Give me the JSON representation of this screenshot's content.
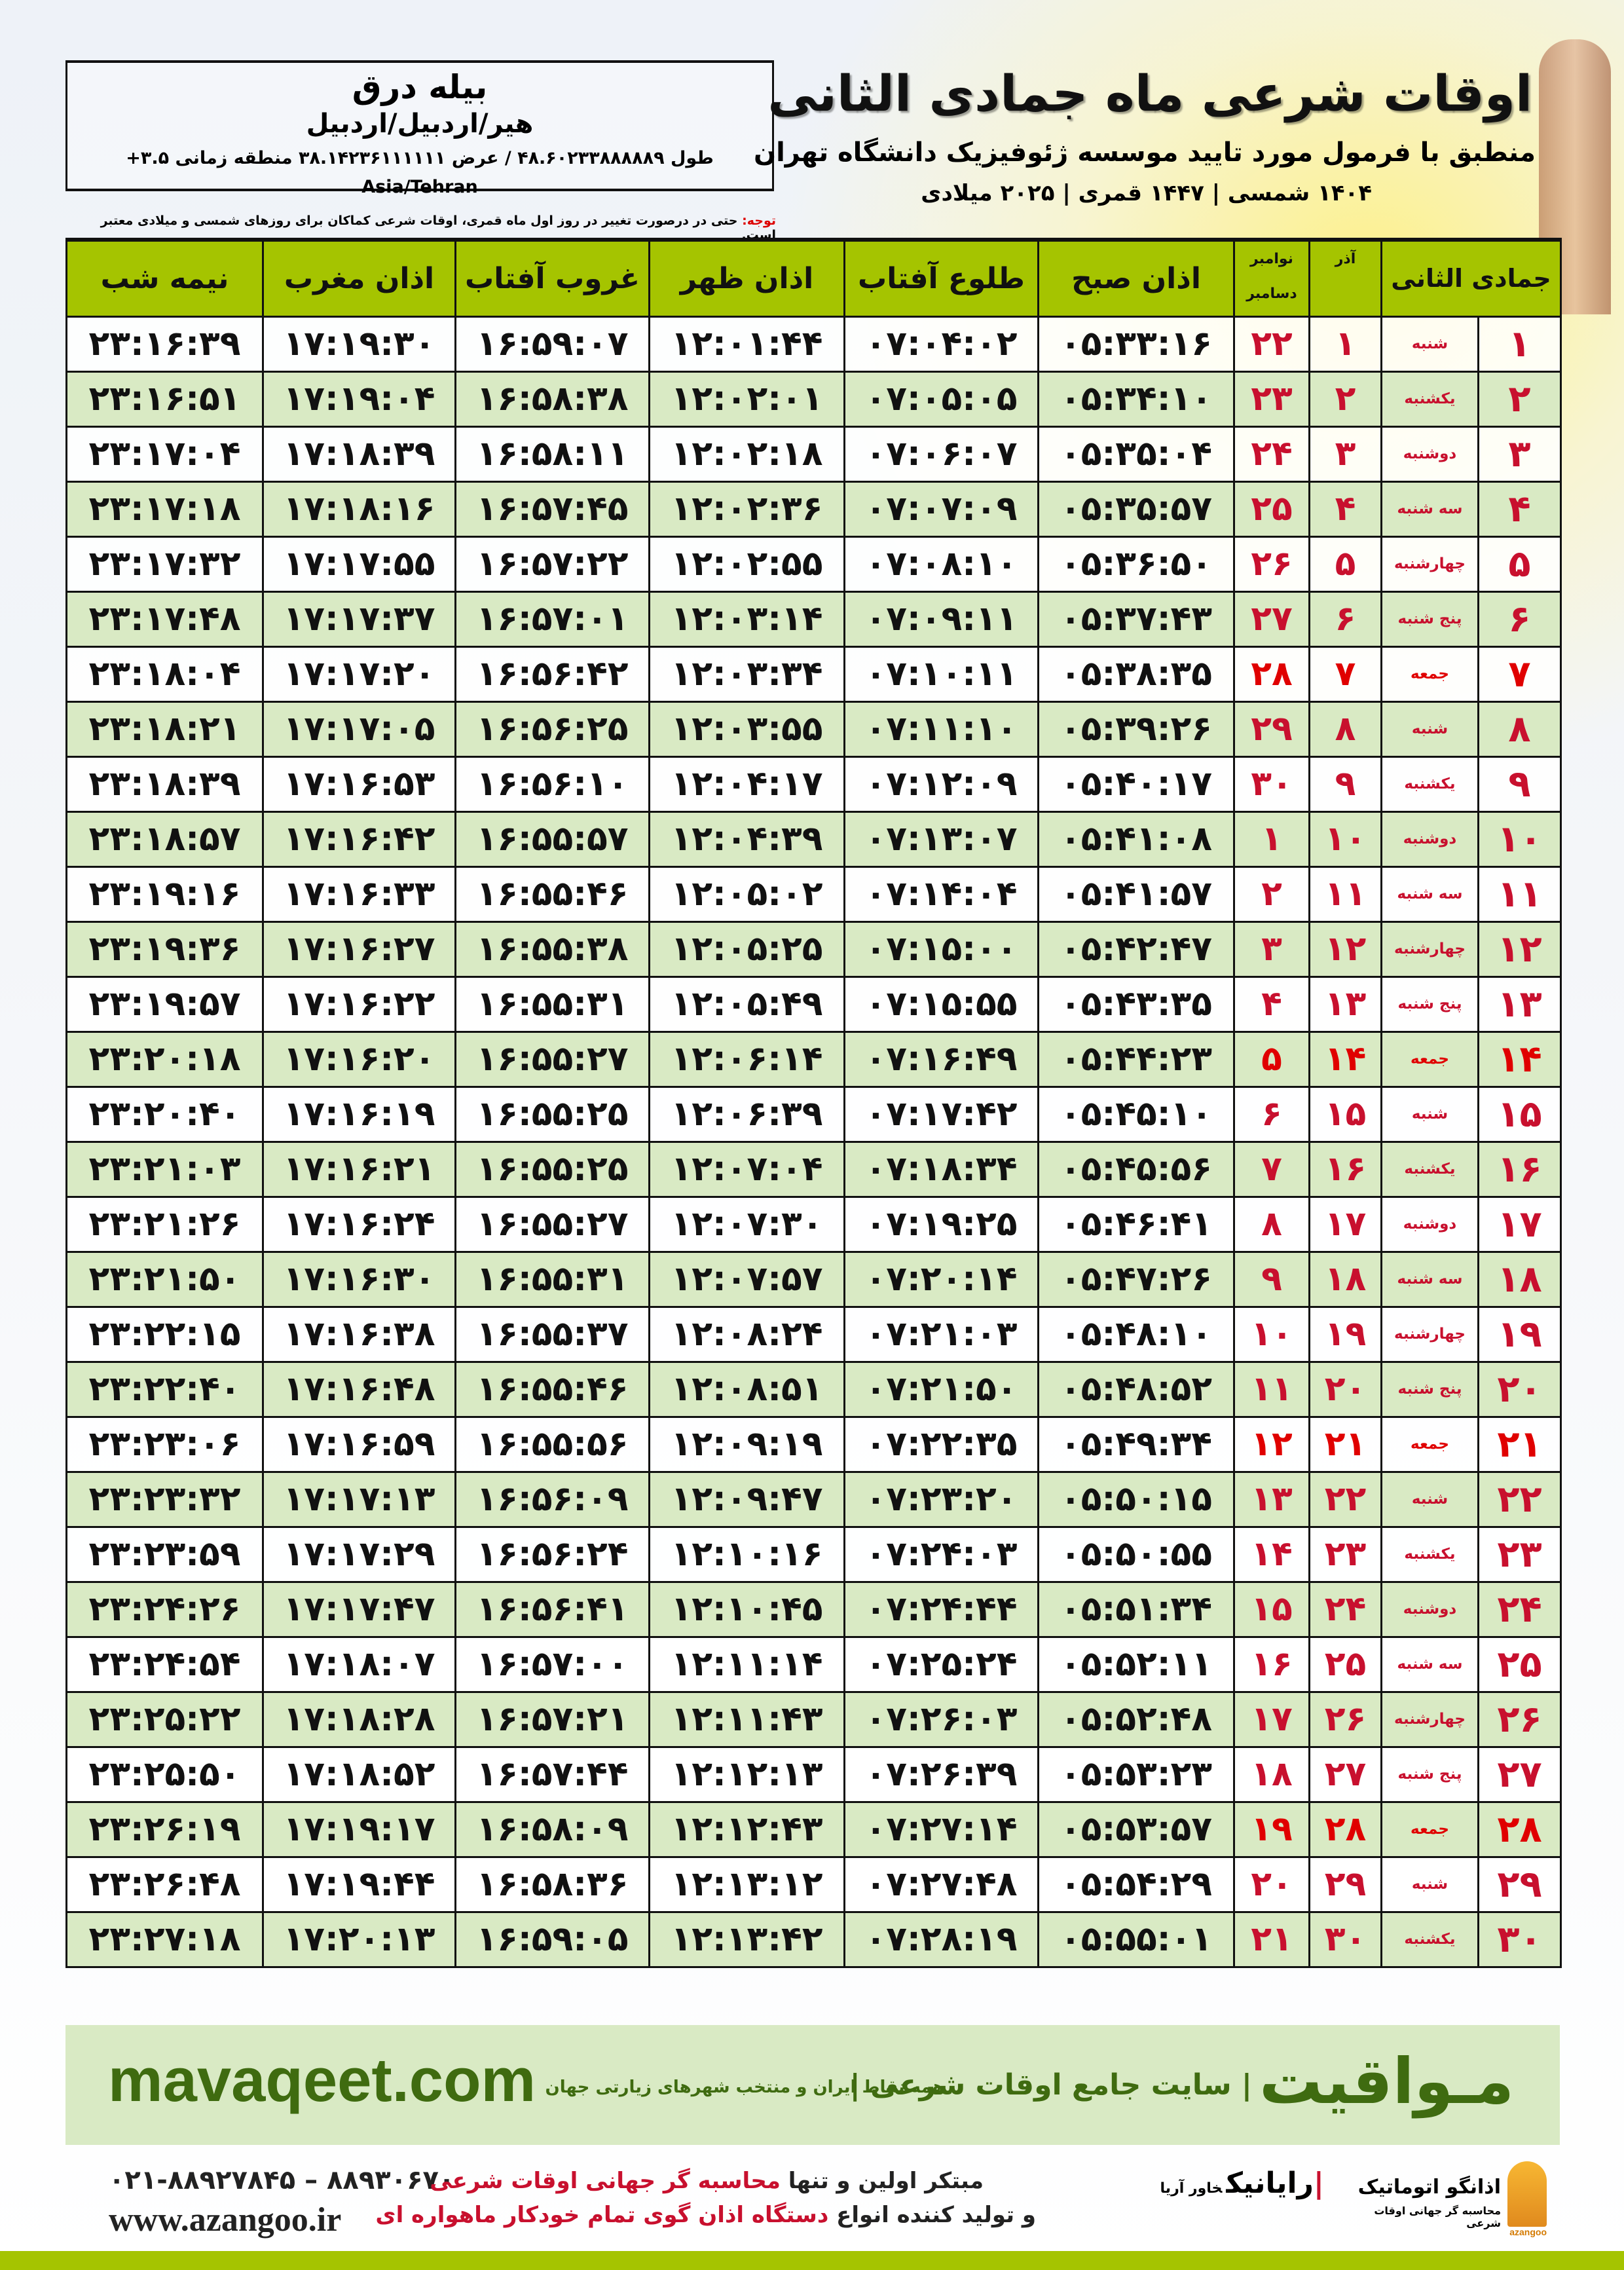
{
  "header": {
    "title": "اوقات شرعی ماه جمادی الثانی",
    "subtitle": "منطبق با فرمول مورد تایید موسسه ژئوفیزیک دانشگاه تهران",
    "years": "۱۴۰۴ شمسی | ۱۴۴۷ قمری | ۲۰۲۵ میلادی"
  },
  "location": {
    "city": "بیله درق",
    "province": "هیر/اردبیل/اردبیل",
    "coords": "طول ۴۸.۶۰۲۳۳۸۸۸۸۸۹ / عرض ۳۸.۱۴۲۳۶۱۱۱۱۱۱ منطقه زمانی ۳.۵+ Asia/Tehran"
  },
  "note": {
    "label": "توجه:",
    "text": " حتی در درصورت تغییر در روز اول ماه قمری، اوقات شرعی کماکان برای روزهای شمسی و میلادی معتبر است."
  },
  "table": {
    "headers": {
      "hijri": "جمادی الثانی",
      "azar": "آذر",
      "greg1": "نوامبر",
      "greg2": "دسامبر",
      "fajr": "اذان صبح",
      "sunrise": "طلوع آفتاب",
      "dhuhr": "اذان ظهر",
      "sunset": "غروب آفتاب",
      "maghrib": "اذان مغرب",
      "midnight": "نیمه شب"
    },
    "friday_color": "#e00000",
    "header_color": "#a5c400",
    "alt_row_color": "#d9eac4",
    "rows": [
      [
        "۱",
        "شنبه",
        "۱",
        "۲۲",
        "۰۵:۳۳:۱۶",
        "۰۷:۰۴:۰۲",
        "۱۲:۰۱:۴۴",
        "۱۶:۵۹:۰۷",
        "۱۷:۱۹:۳۰",
        "۲۳:۱۶:۳۹"
      ],
      [
        "۲",
        "یکشنبه",
        "۲",
        "۲۳",
        "۰۵:۳۴:۱۰",
        "۰۷:۰۵:۰۵",
        "۱۲:۰۲:۰۱",
        "۱۶:۵۸:۳۸",
        "۱۷:۱۹:۰۴",
        "۲۳:۱۶:۵۱"
      ],
      [
        "۳",
        "دوشنبه",
        "۳",
        "۲۴",
        "۰۵:۳۵:۰۴",
        "۰۷:۰۶:۰۷",
        "۱۲:۰۲:۱۸",
        "۱۶:۵۸:۱۱",
        "۱۷:۱۸:۳۹",
        "۲۳:۱۷:۰۴"
      ],
      [
        "۴",
        "سه شنبه",
        "۴",
        "۲۵",
        "۰۵:۳۵:۵۷",
        "۰۷:۰۷:۰۹",
        "۱۲:۰۲:۳۶",
        "۱۶:۵۷:۴۵",
        "۱۷:۱۸:۱۶",
        "۲۳:۱۷:۱۸"
      ],
      [
        "۵",
        "چهارشنبه",
        "۵",
        "۲۶",
        "۰۵:۳۶:۵۰",
        "۰۷:۰۸:۱۰",
        "۱۲:۰۲:۵۵",
        "۱۶:۵۷:۲۲",
        "۱۷:۱۷:۵۵",
        "۲۳:۱۷:۳۲"
      ],
      [
        "۶",
        "پنج شنبه",
        "۶",
        "۲۷",
        "۰۵:۳۷:۴۳",
        "۰۷:۰۹:۱۱",
        "۱۲:۰۳:۱۴",
        "۱۶:۵۷:۰۱",
        "۱۷:۱۷:۳۷",
        "۲۳:۱۷:۴۸"
      ],
      [
        "۷",
        "جمعه",
        "۷",
        "۲۸",
        "۰۵:۳۸:۳۵",
        "۰۷:۱۰:۱۱",
        "۱۲:۰۳:۳۴",
        "۱۶:۵۶:۴۲",
        "۱۷:۱۷:۲۰",
        "۲۳:۱۸:۰۴"
      ],
      [
        "۸",
        "شنبه",
        "۸",
        "۲۹",
        "۰۵:۳۹:۲۶",
        "۰۷:۱۱:۱۰",
        "۱۲:۰۳:۵۵",
        "۱۶:۵۶:۲۵",
        "۱۷:۱۷:۰۵",
        "۲۳:۱۸:۲۱"
      ],
      [
        "۹",
        "یکشنبه",
        "۹",
        "۳۰",
        "۰۵:۴۰:۱۷",
        "۰۷:۱۲:۰۹",
        "۱۲:۰۴:۱۷",
        "۱۶:۵۶:۱۰",
        "۱۷:۱۶:۵۳",
        "۲۳:۱۸:۳۹"
      ],
      [
        "۱۰",
        "دوشنبه",
        "۱۰",
        "۱",
        "۰۵:۴۱:۰۸",
        "۰۷:۱۳:۰۷",
        "۱۲:۰۴:۳۹",
        "۱۶:۵۵:۵۷",
        "۱۷:۱۶:۴۲",
        "۲۳:۱۸:۵۷"
      ],
      [
        "۱۱",
        "سه شنبه",
        "۱۱",
        "۲",
        "۰۵:۴۱:۵۷",
        "۰۷:۱۴:۰۴",
        "۱۲:۰۵:۰۲",
        "۱۶:۵۵:۴۶",
        "۱۷:۱۶:۳۳",
        "۲۳:۱۹:۱۶"
      ],
      [
        "۱۲",
        "چهارشنبه",
        "۱۲",
        "۳",
        "۰۵:۴۲:۴۷",
        "۰۷:۱۵:۰۰",
        "۱۲:۰۵:۲۵",
        "۱۶:۵۵:۳۸",
        "۱۷:۱۶:۲۷",
        "۲۳:۱۹:۳۶"
      ],
      [
        "۱۳",
        "پنج شنبه",
        "۱۳",
        "۴",
        "۰۵:۴۳:۳۵",
        "۰۷:۱۵:۵۵",
        "۱۲:۰۵:۴۹",
        "۱۶:۵۵:۳۱",
        "۱۷:۱۶:۲۲",
        "۲۳:۱۹:۵۷"
      ],
      [
        "۱۴",
        "جمعه",
        "۱۴",
        "۵",
        "۰۵:۴۴:۲۳",
        "۰۷:۱۶:۴۹",
        "۱۲:۰۶:۱۴",
        "۱۶:۵۵:۲۷",
        "۱۷:۱۶:۲۰",
        "۲۳:۲۰:۱۸"
      ],
      [
        "۱۵",
        "شنبه",
        "۱۵",
        "۶",
        "۰۵:۴۵:۱۰",
        "۰۷:۱۷:۴۲",
        "۱۲:۰۶:۳۹",
        "۱۶:۵۵:۲۵",
        "۱۷:۱۶:۱۹",
        "۲۳:۲۰:۴۰"
      ],
      [
        "۱۶",
        "یکشنبه",
        "۱۶",
        "۷",
        "۰۵:۴۵:۵۶",
        "۰۷:۱۸:۳۴",
        "۱۲:۰۷:۰۴",
        "۱۶:۵۵:۲۵",
        "۱۷:۱۶:۲۱",
        "۲۳:۲۱:۰۳"
      ],
      [
        "۱۷",
        "دوشنبه",
        "۱۷",
        "۸",
        "۰۵:۴۶:۴۱",
        "۰۷:۱۹:۲۵",
        "۱۲:۰۷:۳۰",
        "۱۶:۵۵:۲۷",
        "۱۷:۱۶:۲۴",
        "۲۳:۲۱:۲۶"
      ],
      [
        "۱۸",
        "سه شنبه",
        "۱۸",
        "۹",
        "۰۵:۴۷:۲۶",
        "۰۷:۲۰:۱۴",
        "۱۲:۰۷:۵۷",
        "۱۶:۵۵:۳۱",
        "۱۷:۱۶:۳۰",
        "۲۳:۲۱:۵۰"
      ],
      [
        "۱۹",
        "چهارشنبه",
        "۱۹",
        "۱۰",
        "۰۵:۴۸:۱۰",
        "۰۷:۲۱:۰۳",
        "۱۲:۰۸:۲۴",
        "۱۶:۵۵:۳۷",
        "۱۷:۱۶:۳۸",
        "۲۳:۲۲:۱۵"
      ],
      [
        "۲۰",
        "پنج شنبه",
        "۲۰",
        "۱۱",
        "۰۵:۴۸:۵۲",
        "۰۷:۲۱:۵۰",
        "۱۲:۰۸:۵۱",
        "۱۶:۵۵:۴۶",
        "۱۷:۱۶:۴۸",
        "۲۳:۲۲:۴۰"
      ],
      [
        "۲۱",
        "جمعه",
        "۲۱",
        "۱۲",
        "۰۵:۴۹:۳۴",
        "۰۷:۲۲:۳۵",
        "۱۲:۰۹:۱۹",
        "۱۶:۵۵:۵۶",
        "۱۷:۱۶:۵۹",
        "۲۳:۲۳:۰۶"
      ],
      [
        "۲۲",
        "شنبه",
        "۲۲",
        "۱۳",
        "۰۵:۵۰:۱۵",
        "۰۷:۲۳:۲۰",
        "۱۲:۰۹:۴۷",
        "۱۶:۵۶:۰۹",
        "۱۷:۱۷:۱۳",
        "۲۳:۲۳:۳۲"
      ],
      [
        "۲۳",
        "یکشنبه",
        "۲۳",
        "۱۴",
        "۰۵:۵۰:۵۵",
        "۰۷:۲۴:۰۳",
        "۱۲:۱۰:۱۶",
        "۱۶:۵۶:۲۴",
        "۱۷:۱۷:۲۹",
        "۲۳:۲۳:۵۹"
      ],
      [
        "۲۴",
        "دوشنبه",
        "۲۴",
        "۱۵",
        "۰۵:۵۱:۳۴",
        "۰۷:۲۴:۴۴",
        "۱۲:۱۰:۴۵",
        "۱۶:۵۶:۴۱",
        "۱۷:۱۷:۴۷",
        "۲۳:۲۴:۲۶"
      ],
      [
        "۲۵",
        "سه شنبه",
        "۲۵",
        "۱۶",
        "۰۵:۵۲:۱۱",
        "۰۷:۲۵:۲۴",
        "۱۲:۱۱:۱۴",
        "۱۶:۵۷:۰۰",
        "۱۷:۱۸:۰۷",
        "۲۳:۲۴:۵۴"
      ],
      [
        "۲۶",
        "چهارشنبه",
        "۲۶",
        "۱۷",
        "۰۵:۵۲:۴۸",
        "۰۷:۲۶:۰۳",
        "۱۲:۱۱:۴۳",
        "۱۶:۵۷:۲۱",
        "۱۷:۱۸:۲۸",
        "۲۳:۲۵:۲۲"
      ],
      [
        "۲۷",
        "پنج شنبه",
        "۲۷",
        "۱۸",
        "۰۵:۵۳:۲۳",
        "۰۷:۲۶:۳۹",
        "۱۲:۱۲:۱۳",
        "۱۶:۵۷:۴۴",
        "۱۷:۱۸:۵۲",
        "۲۳:۲۵:۵۰"
      ],
      [
        "۲۸",
        "جمعه",
        "۲۸",
        "۱۹",
        "۰۵:۵۳:۵۷",
        "۰۷:۲۷:۱۴",
        "۱۲:۱۲:۴۳",
        "۱۶:۵۸:۰۹",
        "۱۷:۱۹:۱۷",
        "۲۳:۲۶:۱۹"
      ],
      [
        "۲۹",
        "شنبه",
        "۲۹",
        "۲۰",
        "۰۵:۵۴:۲۹",
        "۰۷:۲۷:۴۸",
        "۱۲:۱۳:۱۲",
        "۱۶:۵۸:۳۶",
        "۱۷:۱۹:۴۴",
        "۲۳:۲۶:۴۸"
      ],
      [
        "۳۰",
        "یکشنبه",
        "۳۰",
        "۲۱",
        "۰۵:۵۵:۰۱",
        "۰۷:۲۸:۱۹",
        "۱۲:۱۳:۴۲",
        "۱۶:۵۹:۰۵",
        "۱۷:۲۰:۱۳",
        "۲۳:۲۷:۱۸"
      ]
    ]
  },
  "footer": {
    "brand": "مـواقیت",
    "slogan": "| سایت جامع اوقات شرعی |",
    "slogan2": "همه نقاط ایران و منتخب شهرهای زیارتی جهان",
    "site": "mavaqeet.com",
    "brand_color": "#3f6b10",
    "line1a": "مبتکر اولین و تنها ",
    "line1b": "محاسبه گر جهانی اوقات شرعی",
    "line2a": "و تولید کننده انواع ",
    "line2b": "دستگاه اذان گوی تمام خودکار ماهواره ای",
    "phone": "۰۲۱-۸۸۹۲۷۸۴۵ – ۸۸۹۳۰۶۷۰",
    "web": "www.azangoo.ir",
    "logo1": "اذانگو اتوماتیک",
    "logo1_sub": "محاسبه گر جهانی اوقات شرعی",
    "logo1_latin": "azangoo",
    "logo2": "رایانیک",
    "logo2_sub": "خاور آریا"
  }
}
